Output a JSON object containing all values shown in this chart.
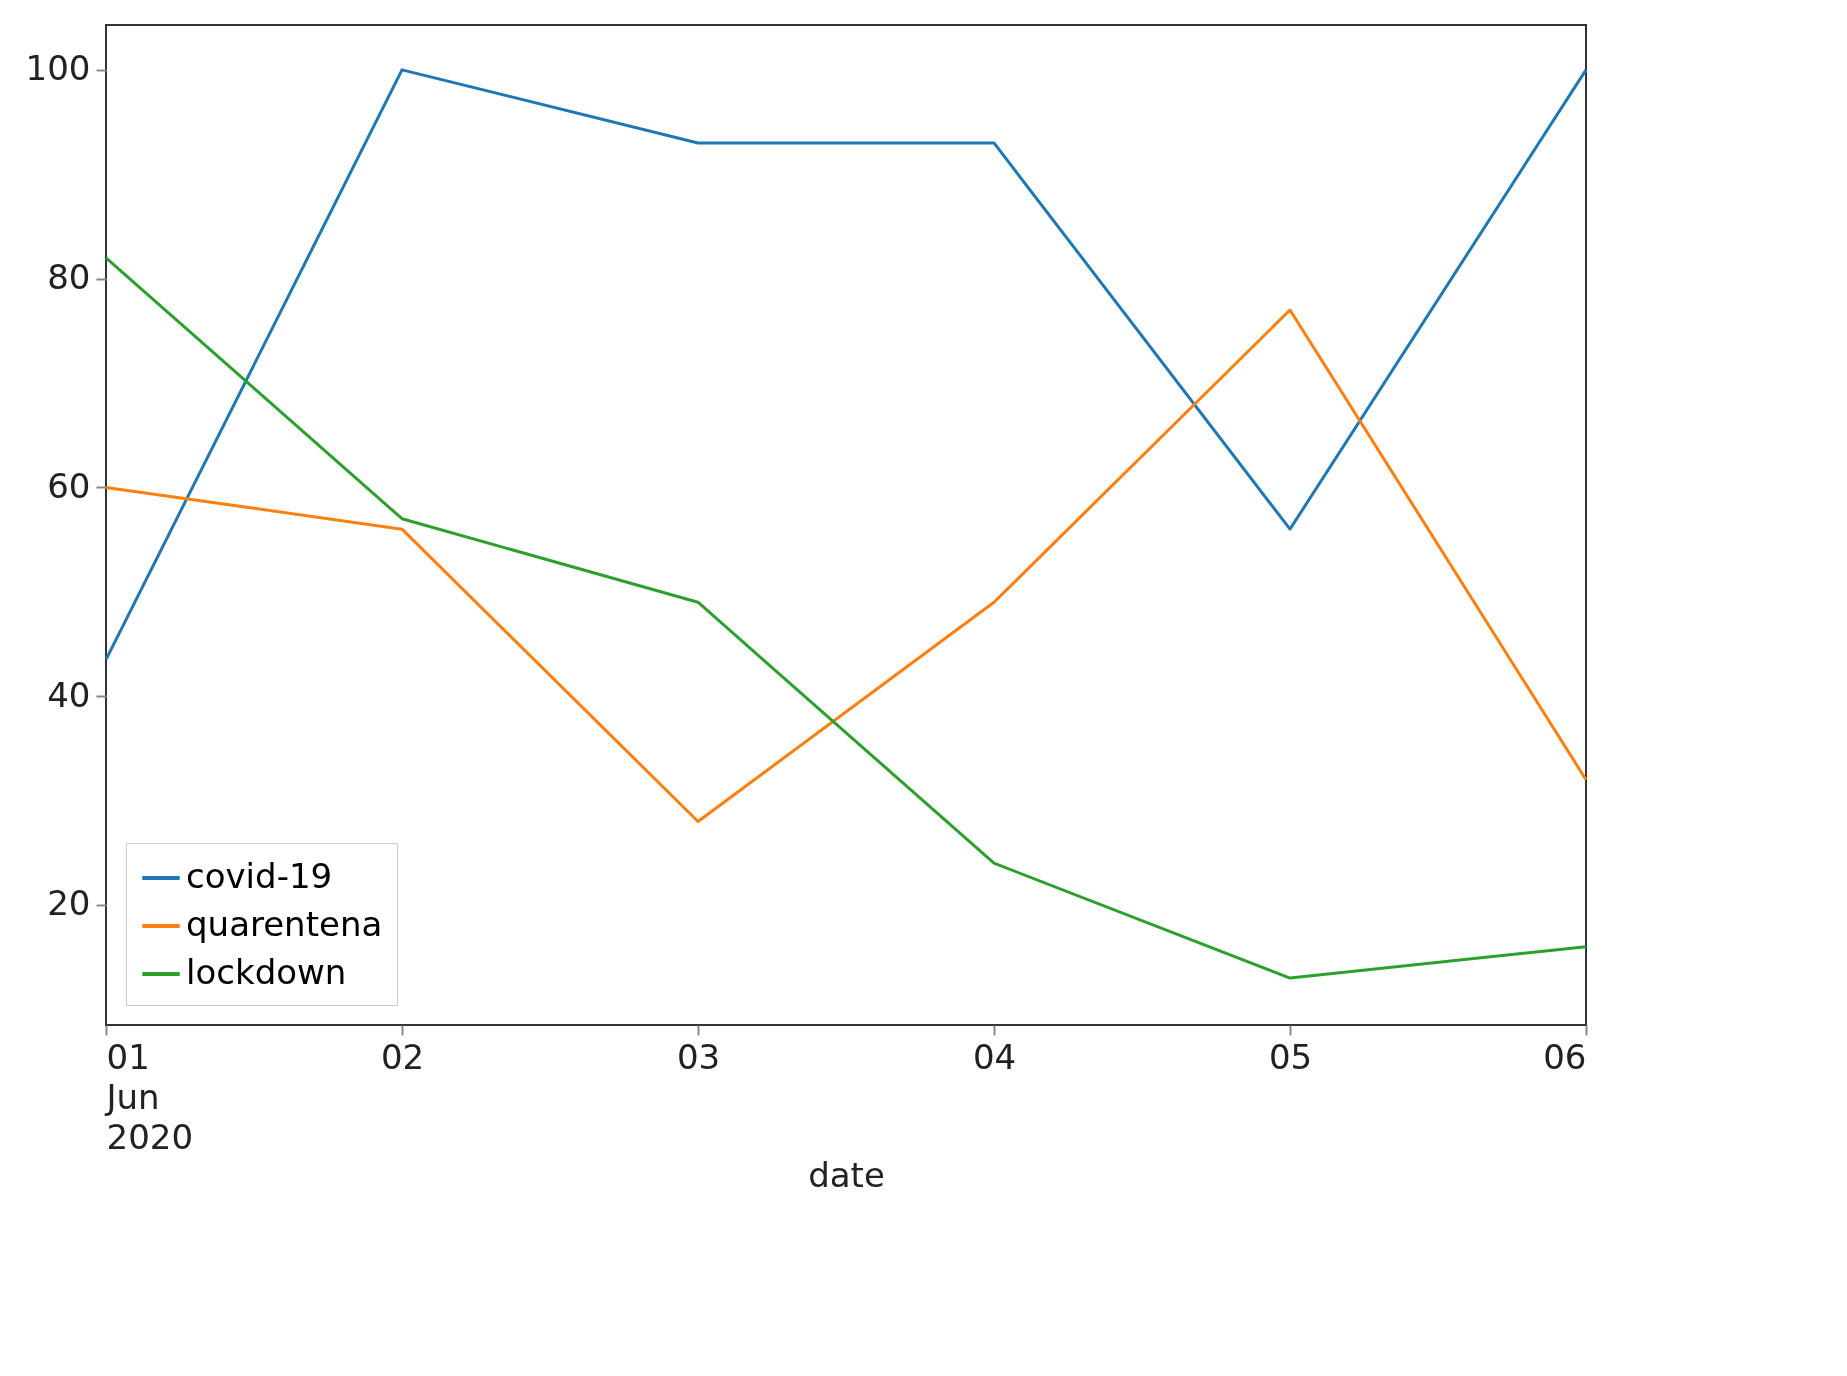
{
  "chart_data": {
    "type": "line",
    "xlabel": "date",
    "x": [
      "2020-06-01",
      "2020-06-02",
      "2020-06-03",
      "2020-06-04",
      "2020-06-05",
      "2020-06-06"
    ],
    "series": [
      {
        "name": "covid-19",
        "color": "#1f77b4",
        "values": [
          43.5,
          100,
          93,
          93,
          56,
          100
        ]
      },
      {
        "name": "quarentena",
        "color": "#ff7f0e",
        "values": [
          60,
          56,
          28,
          49,
          77,
          32
        ]
      },
      {
        "name": "lockdown",
        "color": "#2ca02c",
        "values": [
          82,
          57,
          49,
          24,
          13,
          16
        ]
      }
    ],
    "xlim": [
      "2020-06-01",
      "2020-06-06"
    ],
    "xticks": [
      {
        "value": "2020-06-01",
        "label": "01\nJun\n2020"
      },
      {
        "value": "2020-06-02",
        "label": "02"
      },
      {
        "value": "2020-06-03",
        "label": "03"
      },
      {
        "value": "2020-06-04",
        "label": "04"
      },
      {
        "value": "2020-06-05",
        "label": "05"
      },
      {
        "value": "2020-06-06",
        "label": "06"
      }
    ],
    "ylim": [
      8.5,
      104.3
    ],
    "yticks": [
      20,
      40,
      60,
      80,
      100
    ],
    "grid": false,
    "legend": "bottom left",
    "marker": "none",
    "line_style": "solid"
  }
}
